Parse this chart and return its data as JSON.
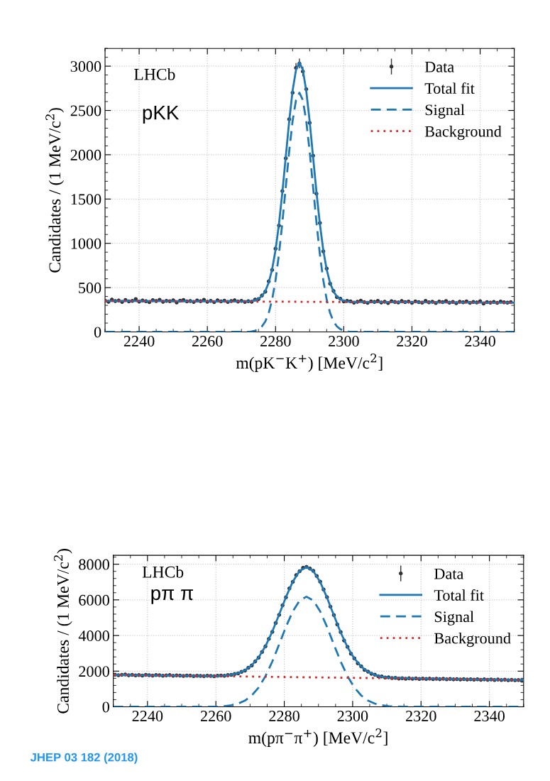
{
  "chart_data": [
    {
      "type": "scatter",
      "xlabel": "m(pK$^{−}$K$^{+}$) [MeV/c$^{2}$]",
      "ylabel": "Candidates / (1 MeV/c$^{2}$)",
      "annotations": [
        "LHCb",
        "pKK"
      ],
      "xlim": [
        2230,
        2350
      ],
      "xticks": [
        2240,
        2260,
        2280,
        2300,
        2320,
        2340
      ],
      "ylim": [
        0,
        3200
      ],
      "yticks": [
        0,
        500,
        1000,
        1500,
        2000,
        2500,
        3000
      ],
      "grid": true,
      "legend": "top right",
      "series": [
        {
          "name": "Data",
          "marker": "circle",
          "color": "#333333",
          "x": [
            2230,
            2231,
            2232,
            2233,
            2234,
            2235,
            2236,
            2237,
            2238,
            2239,
            2240,
            2241,
            2242,
            2243,
            2244,
            2245,
            2246,
            2247,
            2248,
            2249,
            2250,
            2251,
            2252,
            2253,
            2254,
            2255,
            2256,
            2257,
            2258,
            2259,
            2260,
            2261,
            2262,
            2263,
            2264,
            2265,
            2266,
            2267,
            2268,
            2269,
            2270,
            2271,
            2272,
            2273,
            2274,
            2275,
            2276,
            2277,
            2278,
            2279,
            2280,
            2281,
            2282,
            2283,
            2284,
            2285,
            2286,
            2287,
            2288,
            2289,
            2290,
            2291,
            2292,
            2293,
            2294,
            2295,
            2296,
            2297,
            2298,
            2299,
            2300,
            2301,
            2302,
            2303,
            2304,
            2305,
            2306,
            2307,
            2308,
            2309,
            2310,
            2311,
            2312,
            2313,
            2314,
            2315,
            2316,
            2317,
            2318,
            2319,
            2320,
            2321,
            2322,
            2323,
            2324,
            2325,
            2326,
            2327,
            2328,
            2329,
            2330,
            2331,
            2332,
            2333,
            2334,
            2335,
            2336,
            2337,
            2338,
            2339,
            2340,
            2341,
            2342,
            2343,
            2344,
            2345,
            2346,
            2347,
            2348,
            2349
          ],
          "values": [
            352,
            340,
            365,
            348,
            355,
            338,
            360,
            345,
            350,
            370,
            342,
            355,
            347,
            336,
            358,
            349,
            362,
            340,
            351,
            346,
            357,
            333,
            352,
            360,
            344,
            349,
            338,
            355,
            347,
            362,
            341,
            350,
            336,
            356,
            345,
            352,
            339,
            348,
            357,
            343,
            350,
            338,
            347,
            340,
            365,
            370,
            410,
            455,
            570,
            700,
            940,
            1200,
            1590,
            1960,
            2400,
            2700,
            2980,
            3030,
            2940,
            2740,
            2360,
            1990,
            1560,
            1230,
            910,
            715,
            545,
            462,
            392,
            375,
            345,
            350,
            345,
            330,
            340,
            352,
            336,
            328,
            344,
            339,
            350,
            332,
            341,
            326,
            347,
            338,
            333,
            349,
            336,
            342,
            329,
            345,
            337,
            331,
            350,
            334,
            340,
            327,
            343,
            336,
            348,
            330,
            339,
            325,
            341,
            335,
            344,
            329,
            338,
            333,
            346,
            320,
            337,
            331,
            339,
            328,
            342,
            334,
            330,
            336
          ],
          "errors": [
            19,
            19,
            19,
            19,
            19,
            19,
            19,
            19,
            19,
            19,
            19,
            19,
            19,
            19,
            19,
            19,
            19,
            19,
            19,
            19,
            19,
            19,
            19,
            19,
            19,
            19,
            19,
            19,
            19,
            19,
            19,
            19,
            19,
            19,
            19,
            19,
            19,
            19,
            19,
            19,
            19,
            19,
            19,
            18,
            19,
            19,
            20,
            21,
            24,
            26,
            31,
            35,
            null,
            null,
            null,
            null,
            55,
            55,
            54,
            null,
            null,
            null,
            null,
            null,
            30,
            27,
            23,
            21,
            20,
            19,
            19,
            19,
            19,
            19,
            19,
            19,
            19,
            19,
            19,
            19,
            19,
            19,
            19,
            19,
            19,
            19,
            19,
            19,
            19,
            19,
            19,
            19,
            19,
            19,
            19,
            19,
            19,
            19,
            19,
            19,
            19,
            19,
            19,
            19,
            19,
            19,
            19,
            19,
            19,
            19,
            19,
            19,
            19,
            19,
            19,
            19,
            19,
            19,
            19,
            19
          ]
        },
        {
          "name": "Total fit",
          "type": "line",
          "line_style": "solid",
          "color": "#1f77b4",
          "x": [
            2230,
            2250,
            2272,
            2273,
            2274,
            2275,
            2276,
            2277,
            2278,
            2279,
            2280,
            2281,
            2282,
            2283,
            2284,
            2285,
            2286,
            2287,
            2288,
            2289,
            2290,
            2291,
            2292,
            2293,
            2294,
            2295,
            2296,
            2297,
            2298,
            2299,
            2300,
            2301,
            2302,
            2320,
            2350
          ],
          "values": [
            350,
            347,
            343,
            349,
            357,
            374,
            405,
            461,
            557,
            708,
            925,
            1218,
            1577,
            1979,
            2379,
            2723,
            2958,
            3041,
            2958,
            2723,
            2379,
            1979,
            1577,
            1218,
            922,
            703,
            552,
            456,
            400,
            369,
            352,
            344,
            338,
            335,
            330
          ]
        },
        {
          "name": "Signal",
          "type": "line",
          "line_style": "dashed",
          "color": "#1f77b4",
          "x": [
            2230,
            2272,
            2273,
            2274,
            2275,
            2276,
            2277,
            2278,
            2279,
            2280,
            2281,
            2282,
            2283,
            2284,
            2285,
            2286,
            2287,
            2288,
            2289,
            2290,
            2291,
            2292,
            2293,
            2294,
            2295,
            2296,
            2297,
            2298,
            2299,
            2300,
            2301,
            2302,
            2350
          ],
          "values": [
            0,
            0,
            6,
            14,
            31,
            62,
            118,
            214,
            365,
            584,
            877,
            1236,
            1638,
            2038,
            2382,
            2617,
            2700,
            2617,
            2382,
            2038,
            1638,
            1236,
            877,
            584,
            365,
            214,
            118,
            62,
            31,
            14,
            6,
            0,
            0
          ]
        },
        {
          "name": "Background",
          "type": "line",
          "line_style": "dotted",
          "color": "#d62728",
          "x": [
            2230,
            2350
          ],
          "values": [
            350,
            330
          ]
        }
      ]
    },
    {
      "type": "scatter",
      "xlabel": "m(pπ$^{−}$π$^{+}$) [MeV/c$^{2}$]",
      "ylabel": "Candidates / (1 MeV/c$^{2}$)",
      "annotations": [
        "LHCb",
        "pπ π",
        "JHEP 03 182 (2018)"
      ],
      "xlim": [
        2230,
        2350
      ],
      "xticks": [
        2240,
        2260,
        2280,
        2300,
        2320,
        2340
      ],
      "ylim": [
        0,
        8500
      ],
      "yticks": [
        0,
        2000,
        4000,
        6000,
        8000
      ],
      "grid": true,
      "legend": "top right",
      "series": [
        {
          "name": "Data",
          "marker": "circle",
          "color": "#333333",
          "x": [
            2230.5,
            2231.5,
            2232.5,
            2233.5,
            2234.5,
            2235.5,
            2236.5,
            2237.5,
            2238.5,
            2239.5,
            2240.5,
            2241.5,
            2242.5,
            2243.5,
            2244.5,
            2245.5,
            2246.5,
            2247.5,
            2248.5,
            2249.5,
            2250.5,
            2251.5,
            2252.5,
            2253.5,
            2254.5,
            2255.5,
            2256.5,
            2257.5,
            2258.5,
            2259.5,
            2260.5,
            2261.5,
            2262.5,
            2263.5,
            2264.5,
            2265.5,
            2266.5,
            2267.5,
            2268.5,
            2269.5,
            2270.5,
            2271.5,
            2272.5,
            2273.5,
            2274.5,
            2275.5,
            2276.5,
            2277.5,
            2278.5,
            2279.5,
            2280.5,
            2281.5,
            2282.5,
            2283.5,
            2284.5,
            2285.5,
            2286.5,
            2287.5,
            2288.5,
            2289.5,
            2290.5,
            2291.5,
            2292.5,
            2293.5,
            2294.5,
            2295.5,
            2296.5,
            2297.5,
            2298.5,
            2299.5,
            2300.5,
            2301.5,
            2302.5,
            2303.5,
            2304.5,
            2305.5,
            2306.5,
            2307.5,
            2308.5,
            2309.5,
            2310.5,
            2311.5,
            2312.5,
            2313.5,
            2314.5,
            2315.5,
            2316.5,
            2317.5,
            2318.5,
            2319.5,
            2320.5,
            2321.5,
            2322.5,
            2323.5,
            2324.5,
            2325.5,
            2326.5,
            2327.5,
            2328.5,
            2329.5,
            2330.5,
            2331.5,
            2332.5,
            2333.5,
            2334.5,
            2335.5,
            2336.5,
            2337.5,
            2338.5,
            2339.5,
            2340.5,
            2341.5,
            2342.5,
            2343.5,
            2344.5,
            2345.5,
            2346.5,
            2347.5,
            2348.5,
            2349.5
          ],
          "values": [
            1805,
            1770,
            1796,
            1812,
            1768,
            1790,
            1760,
            1785,
            1754,
            1792,
            1771,
            1748,
            1780,
            1773,
            1745,
            1762,
            1778,
            1739,
            1760,
            1752,
            1730,
            1755,
            1749,
            1722,
            1745,
            1736,
            1718,
            1740,
            1730,
            1712,
            1742,
            1750,
            1738,
            1782,
            1790,
            1845,
            1870,
            1960,
            2030,
            2190,
            2320,
            2545,
            2760,
            3080,
            3390,
            3810,
            4200,
            4700,
            5160,
            5690,
            6140,
            6640,
            7010,
            7390,
            7610,
            7800,
            7850,
            7760,
            7630,
            7340,
            7020,
            6580,
            6150,
            5620,
            5150,
            4620,
            4190,
            3720,
            3360,
            2980,
            2720,
            2440,
            2270,
            2070,
            1975,
            1850,
            1800,
            1715,
            1700,
            1645,
            1650,
            1610,
            1620,
            1580,
            1600,
            1575,
            1598,
            1570,
            1592,
            1565,
            1585,
            1560,
            1578,
            1555,
            1572,
            1548,
            1570,
            1540,
            1562,
            1538,
            1555,
            1530,
            1552,
            1528,
            1545,
            1522,
            1540,
            1515,
            1538,
            1512,
            1530,
            1505,
            1528,
            1500,
            1520,
            1495,
            1512,
            1490,
            1505,
            1460
          ],
          "errors": [
            42,
            42,
            42,
            42,
            42,
            42,
            42,
            42,
            42,
            42,
            42,
            42,
            42,
            42,
            42,
            42,
            42,
            42,
            42,
            42,
            42,
            42,
            42,
            42,
            42,
            42,
            42,
            42,
            42,
            42,
            42,
            42,
            42,
            42,
            42,
            43,
            43,
            44,
            45,
            47,
            48,
            50,
            53,
            55,
            58,
            62,
            65,
            69,
            72,
            75,
            78,
            81,
            84,
            86,
            87,
            88,
            89,
            88,
            87,
            86,
            84,
            81,
            78,
            75,
            72,
            68,
            65,
            61,
            58,
            55,
            52,
            49,
            48,
            45,
            44,
            43,
            42,
            41,
            41,
            41,
            41,
            40,
            39,
            39,
            39,
            39,
            39,
            39,
            39,
            39,
            39,
            39,
            39,
            39,
            39,
            39,
            39,
            39,
            39,
            39,
            39,
            39,
            39,
            39,
            39,
            39,
            39,
            39,
            39,
            39,
            39,
            39,
            39,
            39,
            39,
            39,
            39,
            39,
            39,
            39
          ]
        },
        {
          "name": "Total fit",
          "type": "line",
          "line_style": "solid",
          "color": "#1f77b4",
          "x": [
            2230,
            2245,
            2260,
            2262.5,
            2264.5,
            2266.5,
            2268.5,
            2270.5,
            2272.5,
            2274.5,
            2276.5,
            2278.5,
            2280.5,
            2282.5,
            2284.5,
            2286.5,
            2288.5,
            2290.5,
            2292.5,
            2294.5,
            2296.5,
            2298.5,
            2300.5,
            2302.5,
            2304.5,
            2306.5,
            2308.5,
            2310.5,
            2320,
            2335,
            2350
          ],
          "values": [
            1792,
            1756,
            1720,
            1751,
            1796,
            1883,
            2046,
            2332,
            2772,
            3403,
            4220,
            5174,
            6158,
            7024,
            7625,
            7836,
            7616,
            7005,
            6129,
            5135,
            4172,
            3346,
            2710,
            2255,
            1959,
            1787,
            1691,
            1636,
            1576,
            1540,
            1504
          ]
        },
        {
          "name": "Signal",
          "type": "line",
          "line_style": "dashed",
          "color": "#1f77b4",
          "x": [
            2230,
            2260,
            2262.5,
            2264.5,
            2266.5,
            2268.5,
            2270.5,
            2272.5,
            2274.5,
            2276.5,
            2278.5,
            2280.5,
            2282.5,
            2284.5,
            2286.5,
            2288.5,
            2290.5,
            2292.5,
            2294.5,
            2296.5,
            2298.5,
            2300.5,
            2302.5,
            2304.5,
            2306.5,
            2308.5,
            2310.5,
            2315,
            2350
          ],
          "values": [
            0,
            0,
            37,
            87,
            179,
            346,
            637,
            1082,
            1718,
            2540,
            3498,
            4487,
            5358,
            5964,
            6180,
            5964,
            5358,
            4487,
            3498,
            2540,
            1718,
            1082,
            637,
            346,
            179,
            87,
            37,
            0,
            0
          ]
        },
        {
          "name": "Background",
          "type": "line",
          "line_style": "dotted",
          "color": "#d62728",
          "x": [
            2230,
            2350
          ],
          "values": [
            1792,
            1504
          ]
        }
      ]
    }
  ]
}
